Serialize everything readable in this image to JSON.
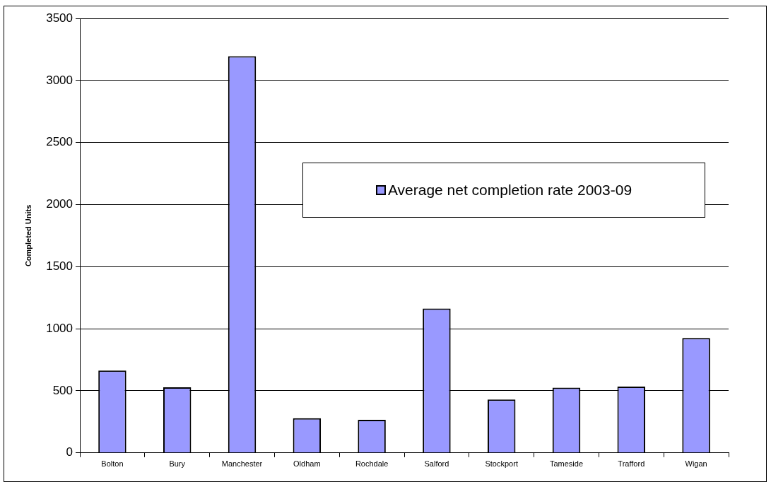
{
  "chart_data": {
    "type": "bar",
    "ylabel": "Completed Units",
    "categories": [
      "Bolton",
      "Bury",
      "Manchester",
      "Oldham",
      "Rochdale",
      "Salford",
      "Stockport",
      "Tameside",
      "Trafford",
      "Wigan"
    ],
    "series": [
      {
        "name": "Average net completion rate 2003-09",
        "color": "#9999ff",
        "values": [
          663,
          528,
          3195,
          279,
          267,
          1163,
          430,
          526,
          534,
          926
        ]
      }
    ],
    "ylim": [
      0,
      3500
    ],
    "yticks": [
      0,
      500,
      1000,
      1500,
      2000,
      2500,
      3000,
      3500
    ],
    "grid": "y",
    "legend": "top right"
  }
}
